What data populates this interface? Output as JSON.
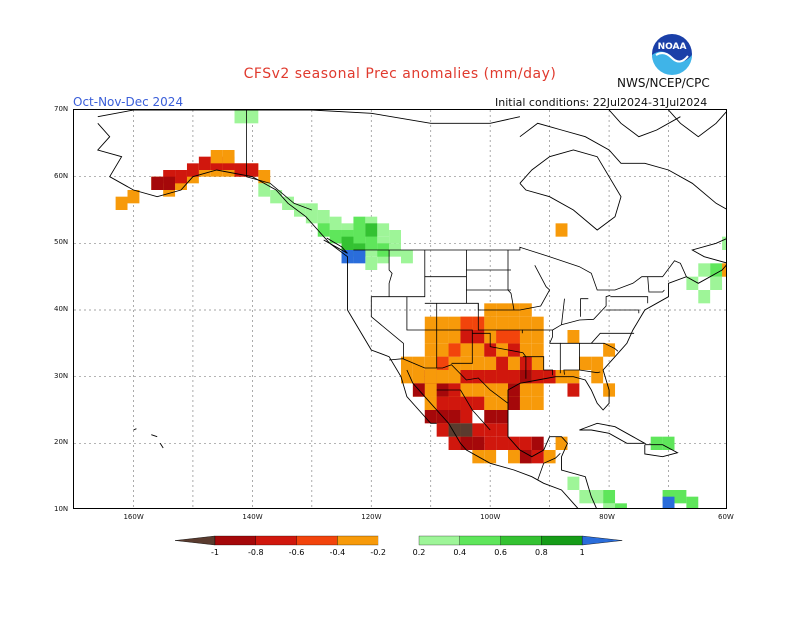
{
  "header": {
    "title": "CFSv2 seasonal Prec anomalies (mm/day)",
    "season": "Oct-Nov-Dec 2024",
    "initial_conditions": "Initial conditions: 22Jul2024-31Jul2024",
    "agency": "NWS/NCEP/CPC",
    "logo_text": "NOAA"
  },
  "map": {
    "lat_labels": [
      "70N",
      "60N",
      "50N",
      "40N",
      "30N",
      "20N",
      "10N"
    ],
    "lon_labels": [
      "160W",
      "140W",
      "120W",
      "100W",
      "80W",
      "60W"
    ],
    "lat_range": [
      10,
      70
    ],
    "lon_range": [
      -170,
      -60
    ],
    "grid": true
  },
  "colorbar": {
    "tick_labels": [
      "-1",
      "-0.8",
      "-0.6",
      "-0.4",
      "-0.2",
      "0.2",
      "0.4",
      "0.6",
      "0.8",
      "1"
    ],
    "colors": [
      "#5a3b2e",
      "#a5080a",
      "#d0170d",
      "#f2440c",
      "#f79a0a",
      "#ffffff",
      "#9ef598",
      "#5fe65b",
      "#34c232",
      "#169c18",
      "#2a6ddb"
    ]
  },
  "colors": {
    "dark_brown": "#5a3b2e",
    "dark_red": "#a5080a",
    "red": "#d0170d",
    "red_orange": "#f2440c",
    "orange": "#f79a0a",
    "light_green": "#9ef598",
    "green": "#5fe65b",
    "mid_green": "#34c232",
    "dark_green": "#169c18",
    "blue": "#2a6ddb"
  }
}
